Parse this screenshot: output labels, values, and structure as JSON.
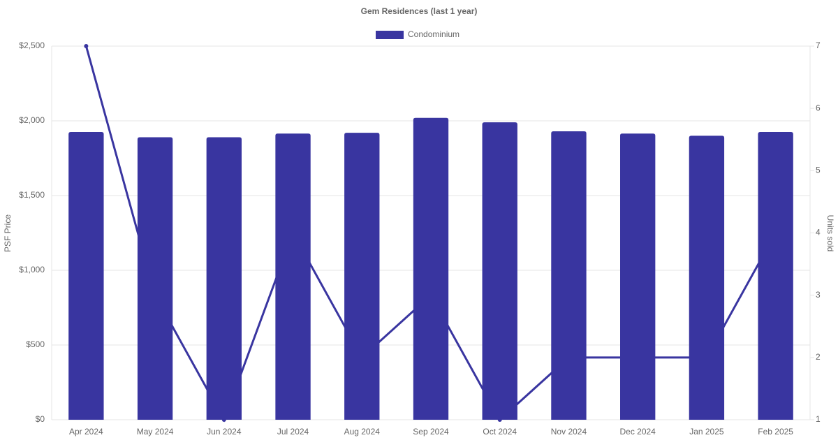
{
  "chart_data": {
    "type": "bar",
    "title": "Gem Residences (last 1 year)",
    "categories": [
      "Apr 2024",
      "May 2024",
      "Jun 2024",
      "Jul 2024",
      "Aug 2024",
      "Sep 2024",
      "Oct 2024",
      "Nov 2024",
      "Dec 2024",
      "Jan 2025",
      "Feb 2025"
    ],
    "series": [
      {
        "name": "Condominium",
        "type": "bar",
        "color": "#3935a0",
        "values": [
          1925,
          1890,
          1890,
          1915,
          1920,
          2020,
          1990,
          1930,
          1915,
          1900,
          1925
        ]
      },
      {
        "type": "line",
        "axis": "y2",
        "color": "#3935a0",
        "values": [
          7,
          3,
          1,
          4,
          2,
          3,
          1,
          2,
          2,
          2,
          4
        ]
      }
    ],
    "ylabel": "PSF Price",
    "y2label": "Units sold",
    "ylim": [
      0,
      2500
    ],
    "yticks": [
      {
        "value": 0,
        "label": "$0"
      },
      {
        "value": 500,
        "label": "$500"
      },
      {
        "value": 1000,
        "label": "$1,000"
      },
      {
        "value": 1500,
        "label": "$1,500"
      },
      {
        "value": 2000,
        "label": "$2,000"
      },
      {
        "value": 2500,
        "label": "$2,500"
      }
    ],
    "y2lim": [
      1,
      7
    ],
    "y2ticks": [
      1,
      2,
      3,
      4,
      5,
      6,
      7
    ],
    "grid": true,
    "legend": "top"
  }
}
